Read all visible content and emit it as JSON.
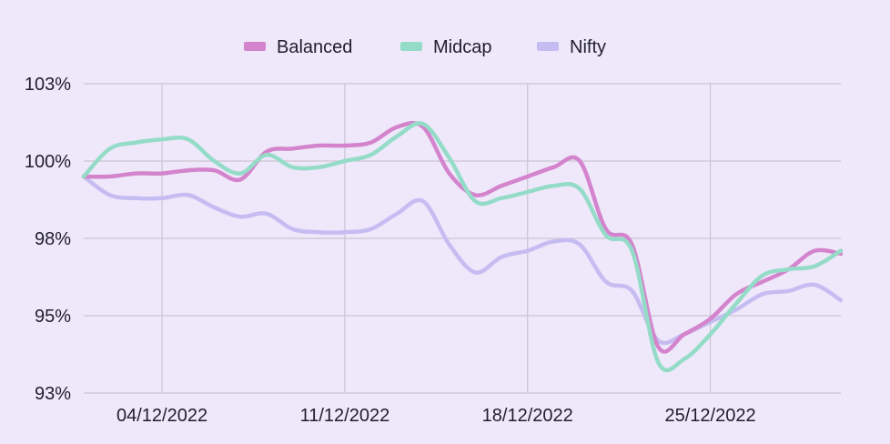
{
  "chart_data": {
    "type": "line",
    "title": "",
    "xlabel": "",
    "ylabel": "",
    "x_ticks": [
      "04/12/2022",
      "11/12/2022",
      "18/12/2022",
      "25/12/2022"
    ],
    "x_tick_days": [
      3,
      10,
      17,
      24
    ],
    "x_range_days": [
      0,
      29
    ],
    "y_ticks": [
      "93%",
      "95%",
      "98%",
      "100%",
      "103%"
    ],
    "ylim": [
      93,
      103
    ],
    "grid": true,
    "legend": "top-center",
    "series": [
      {
        "name": "Balanced",
        "color": "#d484cc",
        "x": [
          0,
          1,
          2,
          3,
          4,
          5,
          6,
          7,
          8,
          9,
          10,
          11,
          12,
          13,
          14,
          15,
          16,
          17,
          18,
          19,
          20,
          21,
          22,
          23,
          24,
          25,
          26,
          27,
          28,
          29
        ],
        "values": [
          100.0,
          100.0,
          100.1,
          100.1,
          100.2,
          100.2,
          99.9,
          100.8,
          100.9,
          101.0,
          101.0,
          101.1,
          101.6,
          101.6,
          100.1,
          99.4,
          99.7,
          100.0,
          100.3,
          100.5,
          98.3,
          97.8,
          94.5,
          94.9,
          95.4,
          96.2,
          96.6,
          97.0,
          97.6,
          97.5
        ]
      },
      {
        "name": "Midcap",
        "color": "#94dcc8",
        "x": [
          0,
          1,
          2,
          3,
          4,
          5,
          6,
          7,
          8,
          9,
          10,
          11,
          12,
          13,
          14,
          15,
          16,
          17,
          18,
          19,
          20,
          21,
          22,
          23,
          24,
          25,
          26,
          27,
          28,
          29
        ],
        "values": [
          100.0,
          100.9,
          101.1,
          101.2,
          101.2,
          100.5,
          100.1,
          100.7,
          100.3,
          100.3,
          100.5,
          100.7,
          101.3,
          101.7,
          100.6,
          99.2,
          99.3,
          99.5,
          99.7,
          99.6,
          98.1,
          97.6,
          94.0,
          94.1,
          94.9,
          95.9,
          96.8,
          97.0,
          97.1,
          97.6
        ]
      },
      {
        "name": "Nifty",
        "color": "#c5bdf1",
        "x": [
          0,
          1,
          2,
          3,
          4,
          5,
          6,
          7,
          8,
          9,
          10,
          11,
          12,
          13,
          14,
          15,
          16,
          17,
          18,
          19,
          20,
          21,
          22,
          23,
          24,
          25,
          26,
          27,
          28,
          29
        ],
        "values": [
          100.0,
          99.4,
          99.3,
          99.3,
          99.4,
          99.0,
          98.7,
          98.8,
          98.3,
          98.2,
          98.2,
          98.3,
          98.8,
          99.2,
          97.8,
          96.9,
          97.4,
          97.6,
          97.9,
          97.8,
          96.6,
          96.3,
          94.7,
          94.9,
          95.3,
          95.7,
          96.2,
          96.3,
          96.5,
          96.0
        ]
      }
    ]
  }
}
